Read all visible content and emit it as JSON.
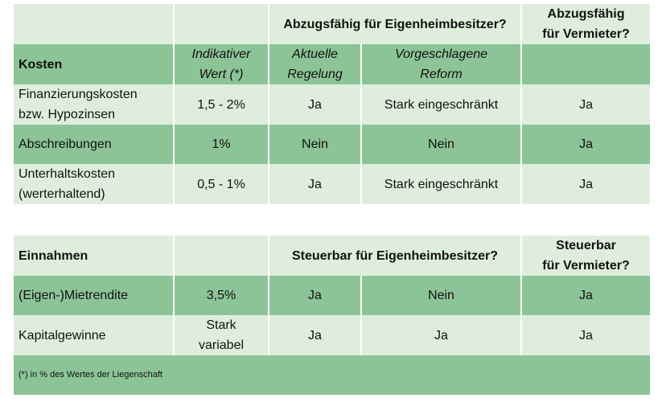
{
  "table1": {
    "group_headers": [
      [
        "Abzugsfähig für Eigenheimbesitzer?"
      ],
      [
        "Abzugsfähig",
        "für Vermieter?"
      ]
    ],
    "columns": [
      [
        "Kosten"
      ],
      [
        "Indikativer",
        "Wert (*)"
      ],
      [
        "Aktuelle",
        "Regelung"
      ],
      [
        "Vorgeschlagene",
        "Reform"
      ]
    ],
    "rows": [
      [
        [
          "Finanzierungskosten",
          "bzw. Hypozinsen"
        ],
        [
          "1,5 - 2%"
        ],
        [
          "Ja"
        ],
        [
          "Stark eingeschränkt"
        ],
        [
          "Ja"
        ]
      ],
      [
        [
          "Abschreibungen"
        ],
        [
          "1%"
        ],
        [
          "Nein"
        ],
        [
          "Nein"
        ],
        [
          "Ja"
        ]
      ],
      [
        [
          "Unterhaltskosten",
          "(werterhaltend)"
        ],
        [
          "0,5 - 1%"
        ],
        [
          "Ja"
        ],
        [
          "Stark eingeschränkt"
        ],
        [
          "Ja"
        ]
      ]
    ]
  },
  "table2": {
    "header": [
      [
        "Einnahmen"
      ],
      [
        "Steuerbar für Eigenheimbesitzer?"
      ],
      [
        "Steuerbar",
        "für Vermieter?"
      ]
    ],
    "rows": [
      [
        [
          "(Eigen-)Mietrendite"
        ],
        [
          "3,5%"
        ],
        [
          "Ja"
        ],
        [
          "Nein"
        ],
        [
          "Ja"
        ]
      ],
      [
        [
          "Kapitalgewinne"
        ],
        [
          "Stark",
          "variabel"
        ],
        [
          "Ja"
        ],
        [
          "Ja"
        ],
        [
          "Ja"
        ]
      ]
    ]
  },
  "footnote": "(*) in % des Wertes der Liegenschaft"
}
